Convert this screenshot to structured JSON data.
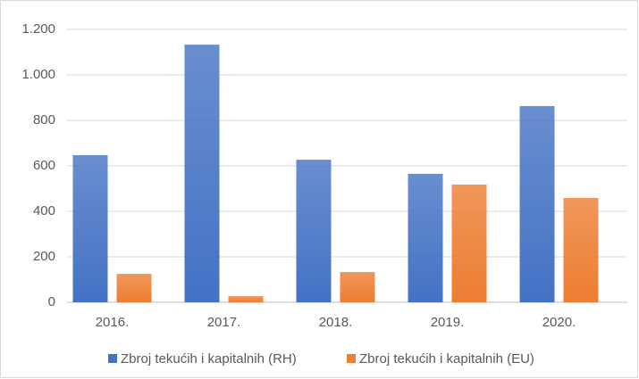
{
  "chart_data": {
    "type": "bar",
    "categories": [
      "2016.",
      "2017.",
      "2018.",
      "2019.",
      "2020."
    ],
    "series": [
      {
        "name": "Zbroj tekućih i kapitalnih (RH)",
        "color": "#4472c4",
        "values": [
          647,
          1133,
          627,
          565,
          863
        ]
      },
      {
        "name": "Zbroj tekućih i kapitalnih (EU)",
        "color": "#ed7d31",
        "values": [
          125,
          27,
          133,
          518,
          459
        ]
      }
    ],
    "ylim": [
      0,
      1200
    ],
    "yticks": [
      0,
      200,
      400,
      600,
      800,
      {
        "value": 1000,
        "label": "1.000"
      },
      {
        "value": 1200,
        "label": "1.200"
      }
    ],
    "grid": true,
    "legend": "bottom"
  }
}
